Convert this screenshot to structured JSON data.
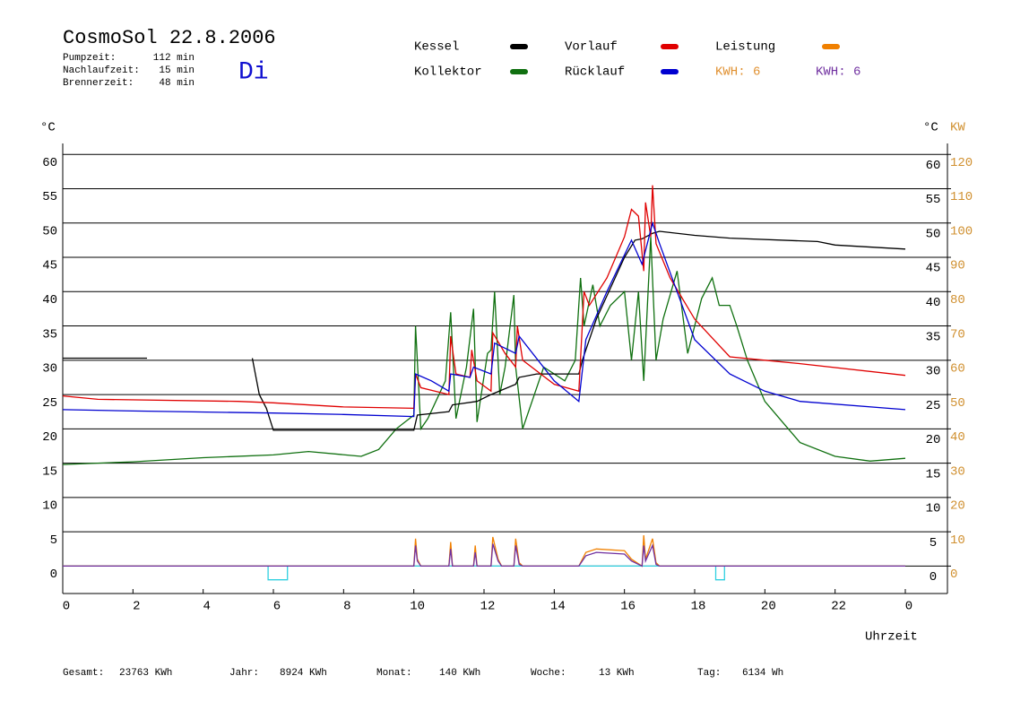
{
  "chart_data": {
    "type": "line",
    "title": "CosmoSol 22.8.2006",
    "info": [
      {
        "label": "Pumpzeit:",
        "value": "112 min"
      },
      {
        "label": "Nachlaufzeit:",
        "value": "15 min"
      },
      {
        "label": "Brennerzeit:",
        "value": "48 min"
      }
    ],
    "day": "Di",
    "xlabel": "Uhrzeit",
    "ylabel": "°C",
    "y2label": "KW",
    "xlim": [
      0,
      25.2
    ],
    "xticks": [
      0,
      2,
      4,
      6,
      8,
      10,
      12,
      14,
      16,
      18,
      20,
      22,
      {
        "value": 24,
        "label": "0"
      }
    ],
    "ylim": [
      -4,
      61.6
    ],
    "yticks": [
      0,
      5,
      10,
      15,
      20,
      25,
      30,
      35,
      40,
      45,
      50,
      55,
      60
    ],
    "y2lim": [
      -8,
      123.2
    ],
    "y2ticks": [
      0,
      10,
      20,
      30,
      40,
      50,
      60,
      70,
      80,
      90,
      100,
      110,
      120
    ],
    "grid": true,
    "series": [
      {
        "name": "Kessel",
        "color": "#000000",
        "x": [
          0,
          2.4,
          4,
          5.4,
          5.6,
          5.8,
          6.0,
          10,
          10.1,
          11,
          11.1,
          11.8,
          12.2,
          12.9,
          13.0,
          13.5,
          14.7,
          14.8,
          15.2,
          16,
          16.3,
          16.5,
          16.8,
          17,
          18,
          19,
          21.5,
          22,
          24
        ],
        "values": [
          30.3,
          30.3,
          null,
          30.3,
          25,
          23,
          19.8,
          19.8,
          22,
          22.5,
          23.5,
          24,
          25,
          26.5,
          27.5,
          28,
          28,
          30,
          36,
          45,
          47.5,
          47.7,
          48.5,
          48.8,
          48.2,
          47.8,
          47.3,
          46.8,
          46.2
        ]
      },
      {
        "name": "Vorlauf",
        "color": "#e00000",
        "x": [
          0,
          1,
          5,
          6,
          8,
          10,
          10.05,
          10.2,
          11,
          11.05,
          11.2,
          11.6,
          11.65,
          11.8,
          12.2,
          12.25,
          12.6,
          12.9,
          12.95,
          13.1,
          14,
          14.7,
          14.85,
          15,
          15.5,
          16,
          16.2,
          16.4,
          16.55,
          16.6,
          16.75,
          16.8,
          16.9,
          17.3,
          18,
          19,
          20,
          21,
          24
        ],
        "values": [
          24.8,
          24.3,
          24.0,
          23.8,
          23.2,
          23.0,
          28,
          26,
          25,
          33.5,
          28,
          27.5,
          31.5,
          27,
          25.5,
          34,
          31,
          29,
          35,
          30,
          26.5,
          25.5,
          40,
          38,
          42,
          48,
          52,
          51,
          43,
          53,
          48,
          55.5,
          47,
          42,
          36,
          30.5,
          30,
          29.5,
          27.8
        ]
      },
      {
        "name": "Leistung",
        "color": "#f08000",
        "axis": "y2",
        "x": [
          0,
          10,
          10.05,
          10.1,
          10.2,
          11,
          11.05,
          11.1,
          11.7,
          11.75,
          11.8,
          12.2,
          12.25,
          12.4,
          12.5,
          12.85,
          12.9,
          13.0,
          13.1,
          14.7,
          14.9,
          15.2,
          16,
          16.2,
          16.5,
          16.55,
          16.6,
          16.8,
          16.9,
          17,
          24
        ],
        "values": [
          0,
          0,
          8,
          2,
          0,
          0,
          7,
          0,
          0,
          6,
          0,
          0,
          8.5,
          2,
          0,
          0,
          8,
          1,
          0,
          0,
          4,
          5,
          4.5,
          2,
          0,
          9,
          2,
          8,
          1,
          0,
          0
        ]
      },
      {
        "name": "Kollektor",
        "color": "#107010",
        "x": [
          0,
          2,
          4,
          6,
          7,
          8.5,
          9,
          9.5,
          10,
          10.05,
          10.2,
          10.4,
          10.9,
          11.05,
          11.2,
          11.5,
          11.7,
          11.8,
          12.1,
          12.2,
          12.3,
          12.45,
          12.6,
          12.85,
          12.9,
          13.1,
          13.7,
          14.3,
          14.6,
          14.75,
          14.85,
          15.1,
          15.3,
          15.6,
          16,
          16.2,
          16.4,
          16.55,
          16.75,
          16.9,
          17.1,
          17.3,
          17.5,
          17.8,
          18.2,
          18.5,
          18.7,
          19,
          19.2,
          19.5,
          20,
          20.5,
          21,
          22,
          23,
          24
        ],
        "values": [
          14.8,
          15.2,
          15.8,
          16.2,
          16.7,
          16,
          17,
          20,
          22,
          35,
          20,
          21.5,
          27,
          37,
          21.5,
          29,
          37.5,
          21,
          31,
          31.5,
          40,
          25,
          29,
          39.5,
          29,
          20,
          29,
          27,
          30,
          42,
          35,
          41,
          35,
          38,
          40,
          30,
          40,
          27,
          48,
          30,
          36,
          39.5,
          43,
          31,
          39,
          42,
          38,
          38,
          35,
          30,
          24,
          21,
          18,
          16,
          15.3,
          15.7
        ]
      },
      {
        "name": "Rücklauf",
        "color": "#0000d0",
        "x": [
          0,
          2,
          6,
          8,
          10,
          10.05,
          10.5,
          11,
          11.05,
          11.6,
          11.7,
          12.2,
          12.3,
          12.9,
          13,
          14,
          14.7,
          14.9,
          15.5,
          16.2,
          16.5,
          16.8,
          17,
          17.5,
          18,
          19,
          20,
          21,
          24
        ],
        "values": [
          22.8,
          22.6,
          22.3,
          22.1,
          21.8,
          28,
          27,
          25.5,
          28,
          27.5,
          29,
          28,
          32.5,
          31,
          33.5,
          27,
          24,
          33,
          40,
          47.5,
          44,
          50,
          47,
          40,
          33,
          28,
          25.5,
          24,
          22.8
        ]
      },
      {
        "color": "#7030a0",
        "axis": "y2",
        "x": [
          0,
          10,
          10.05,
          10.1,
          10.2,
          11,
          11.05,
          11.1,
          11.7,
          11.75,
          11.8,
          12.2,
          12.25,
          12.4,
          12.5,
          12.85,
          12.9,
          13.0,
          13.1,
          14.7,
          14.9,
          15.2,
          16,
          16.2,
          16.5,
          16.55,
          16.6,
          16.8,
          16.9,
          17,
          24
        ],
        "values": [
          0,
          0,
          6,
          1.5,
          0,
          0,
          5,
          0,
          0,
          4,
          0,
          0,
          6.5,
          1.5,
          0,
          0,
          6,
          0.5,
          0,
          0,
          3,
          4,
          3.5,
          1.5,
          0,
          6,
          1.5,
          6,
          0.5,
          0,
          0
        ]
      },
      {
        "color": "#30d0e0",
        "x": [
          0,
          5.85,
          5.85,
          6.4,
          6.4,
          18.6,
          18.6,
          18.85,
          18.85,
          24
        ],
        "values": [
          0,
          0,
          -2,
          -2,
          0,
          0,
          -2,
          -2,
          0,
          0
        ]
      }
    ],
    "kwh": [
      {
        "label": "KWH: 6",
        "color": "#e09030"
      },
      {
        "label": "KWH: 6",
        "color": "#7030a0"
      }
    ],
    "totals": [
      {
        "label": "Gesamt:",
        "value": "23763 KWh"
      },
      {
        "label": "Jahr:",
        "value": "8924 KWh"
      },
      {
        "label": "Monat:",
        "value": "140 KWh"
      },
      {
        "label": "Woche:",
        "value": "13 KWh"
      },
      {
        "label": "Tag:",
        "value": "6134 Wh"
      }
    ]
  }
}
